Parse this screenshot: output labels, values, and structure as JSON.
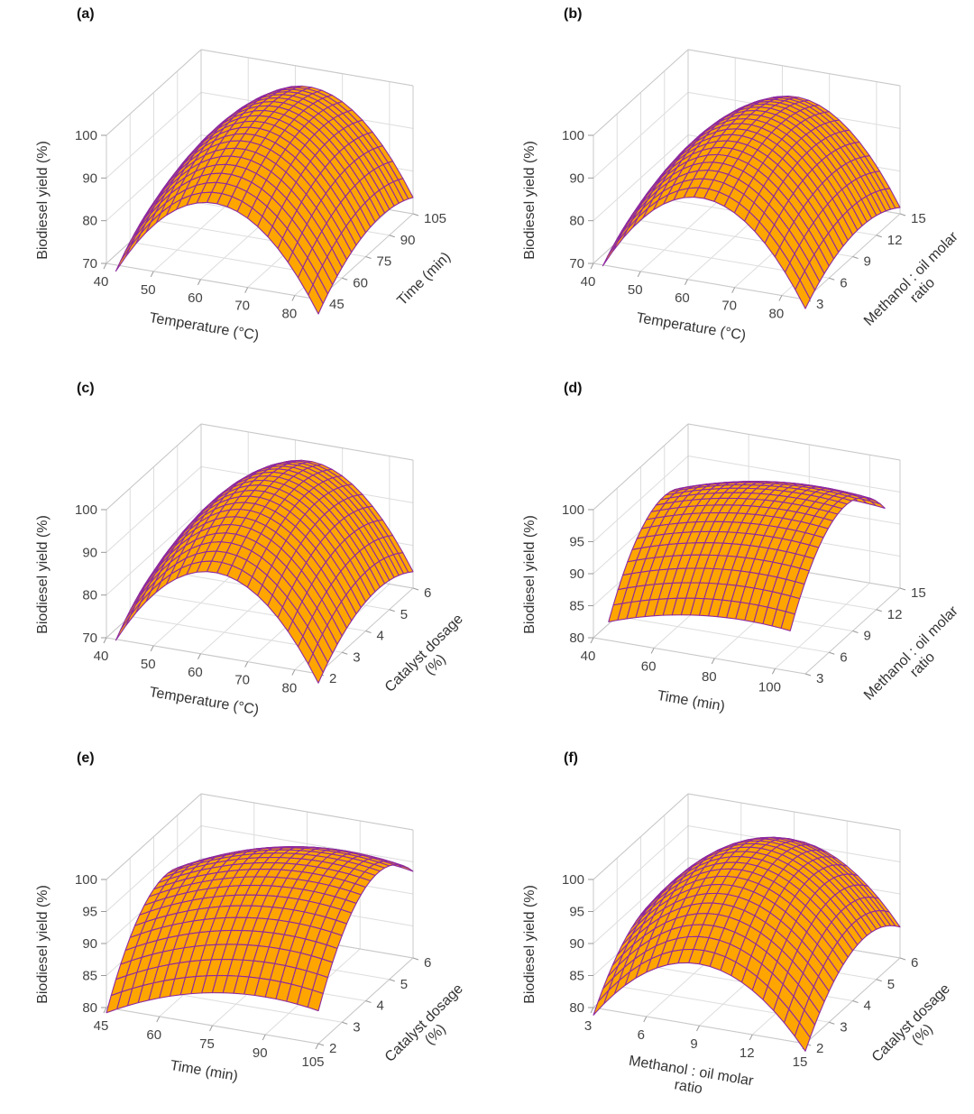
{
  "colors": {
    "surface": "#FFA500",
    "mesh": "#8E2A9E",
    "edge": "#7A1490",
    "grid": "#DDDDDD",
    "box": "#C8C8C8"
  },
  "chart_data": [
    {
      "type": "surface",
      "panel_label": "(a)",
      "xlabel": [
        "Temperature (°C)"
      ],
      "ylabel": [
        "Time (min)"
      ],
      "zlabel": "Biodiesel yield (%)",
      "xlim": [
        40,
        85
      ],
      "ylim": [
        45,
        105
      ],
      "zlim": [
        70,
        100
      ],
      "xticks": [
        40,
        50,
        60,
        70,
        80
      ],
      "yticks": [
        45,
        60,
        75,
        90,
        105
      ],
      "zticks": [
        70,
        80,
        90,
        100
      ],
      "surface_xlim": [
        42,
        85
      ],
      "surface_ylim": [
        45,
        105
      ],
      "model": {
        "x0": 63,
        "y0": 85,
        "z0": 98,
        "kx": 0.045,
        "ky": 0.006
      }
    },
    {
      "type": "surface",
      "panel_label": "(b)",
      "xlabel": [
        "Temperature (°C)"
      ],
      "ylabel": [
        "Methanol : oil molar",
        "ratio"
      ],
      "zlabel": "Biodiesel yield (%)",
      "xlim": [
        40,
        85
      ],
      "ylim": [
        3,
        15
      ],
      "zlim": [
        70,
        100
      ],
      "xticks": [
        40,
        50,
        60,
        70,
        80
      ],
      "yticks": [
        3,
        6,
        9,
        12,
        15
      ],
      "zticks": [
        70,
        80,
        90,
        100
      ],
      "surface_xlim": [
        42,
        85
      ],
      "surface_ylim": [
        3,
        15
      ],
      "model": {
        "x0": 63,
        "y0": 10,
        "z0": 97,
        "kx": 0.045,
        "ky": 0.15
      }
    },
    {
      "type": "surface",
      "panel_label": "(c)",
      "xlabel": [
        "Temperature (°C)"
      ],
      "ylabel": [
        "Catalyst dosage",
        "(%)"
      ],
      "zlabel": "Biodiesel yield (%)",
      "xlim": [
        40,
        85
      ],
      "ylim": [
        2,
        6
      ],
      "zlim": [
        70,
        100
      ],
      "xticks": [
        40,
        50,
        60,
        70,
        80
      ],
      "yticks": [
        2,
        3,
        4,
        5,
        6
      ],
      "zticks": [
        70,
        80,
        90,
        100
      ],
      "surface_xlim": [
        42,
        85
      ],
      "surface_ylim": [
        2,
        6
      ],
      "model": {
        "x0": 63,
        "y0": 4.5,
        "z0": 99,
        "kx": 0.045,
        "ky": 1.5
      }
    },
    {
      "type": "surface",
      "panel_label": "(d)",
      "xlabel": [
        "Time (min)"
      ],
      "ylabel": [
        "Methanol : oil molar",
        "ratio"
      ],
      "zlabel": "Biodiesel yield (%)",
      "xlim": [
        40,
        110
      ],
      "ylim": [
        3,
        15
      ],
      "zlim": [
        80,
        100
      ],
      "xticks": [
        40,
        60,
        80,
        100
      ],
      "yticks": [
        3,
        6,
        9,
        12,
        15
      ],
      "zticks": [
        80,
        85,
        90,
        95,
        100
      ],
      "surface_xlim": [
        45,
        105
      ],
      "surface_ylim": [
        3,
        15
      ],
      "model": {
        "x0": 90,
        "y0": 10,
        "z0": 98.5,
        "kx": 0.0019,
        "ky": 0.24
      }
    },
    {
      "type": "surface",
      "panel_label": "(e)",
      "xlabel": [
        "Time (min)"
      ],
      "ylabel": [
        "Catalyst dosage",
        "(%)"
      ],
      "zlabel": "Biodiesel yield (%)",
      "xlim": [
        45,
        105
      ],
      "ylim": [
        2,
        6
      ],
      "zlim": [
        80,
        100
      ],
      "xticks": [
        45,
        60,
        75,
        90,
        105
      ],
      "yticks": [
        2,
        3,
        4,
        5,
        6
      ],
      "zticks": [
        80,
        85,
        90,
        95,
        100
      ],
      "surface_xlim": [
        45,
        105
      ],
      "surface_ylim": [
        2,
        6
      ],
      "model": {
        "x0": 90,
        "y0": 4.5,
        "z0": 99,
        "kx": 0.0033,
        "ky": 2.1
      }
    },
    {
      "type": "surface",
      "panel_label": "(f)",
      "xlabel": [
        "Methanol : oil molar",
        "ratio"
      ],
      "ylabel": [
        "Catalyst dosage",
        "(%)"
      ],
      "zlabel": "Biodiesel yield (%)",
      "xlim": [
        3,
        15
      ],
      "ylim": [
        2,
        6
      ],
      "zlim": [
        80,
        100
      ],
      "xticks": [
        3,
        6,
        9,
        12,
        15
      ],
      "yticks": [
        2,
        3,
        4,
        5,
        6
      ],
      "zticks": [
        80,
        85,
        90,
        95,
        100
      ],
      "surface_xlim": [
        3,
        15
      ],
      "surface_ylim": [
        2,
        6
      ],
      "model": {
        "x0": 9,
        "y0": 4.5,
        "z0": 99,
        "kx": 0.3,
        "ky": 1.5
      }
    }
  ]
}
